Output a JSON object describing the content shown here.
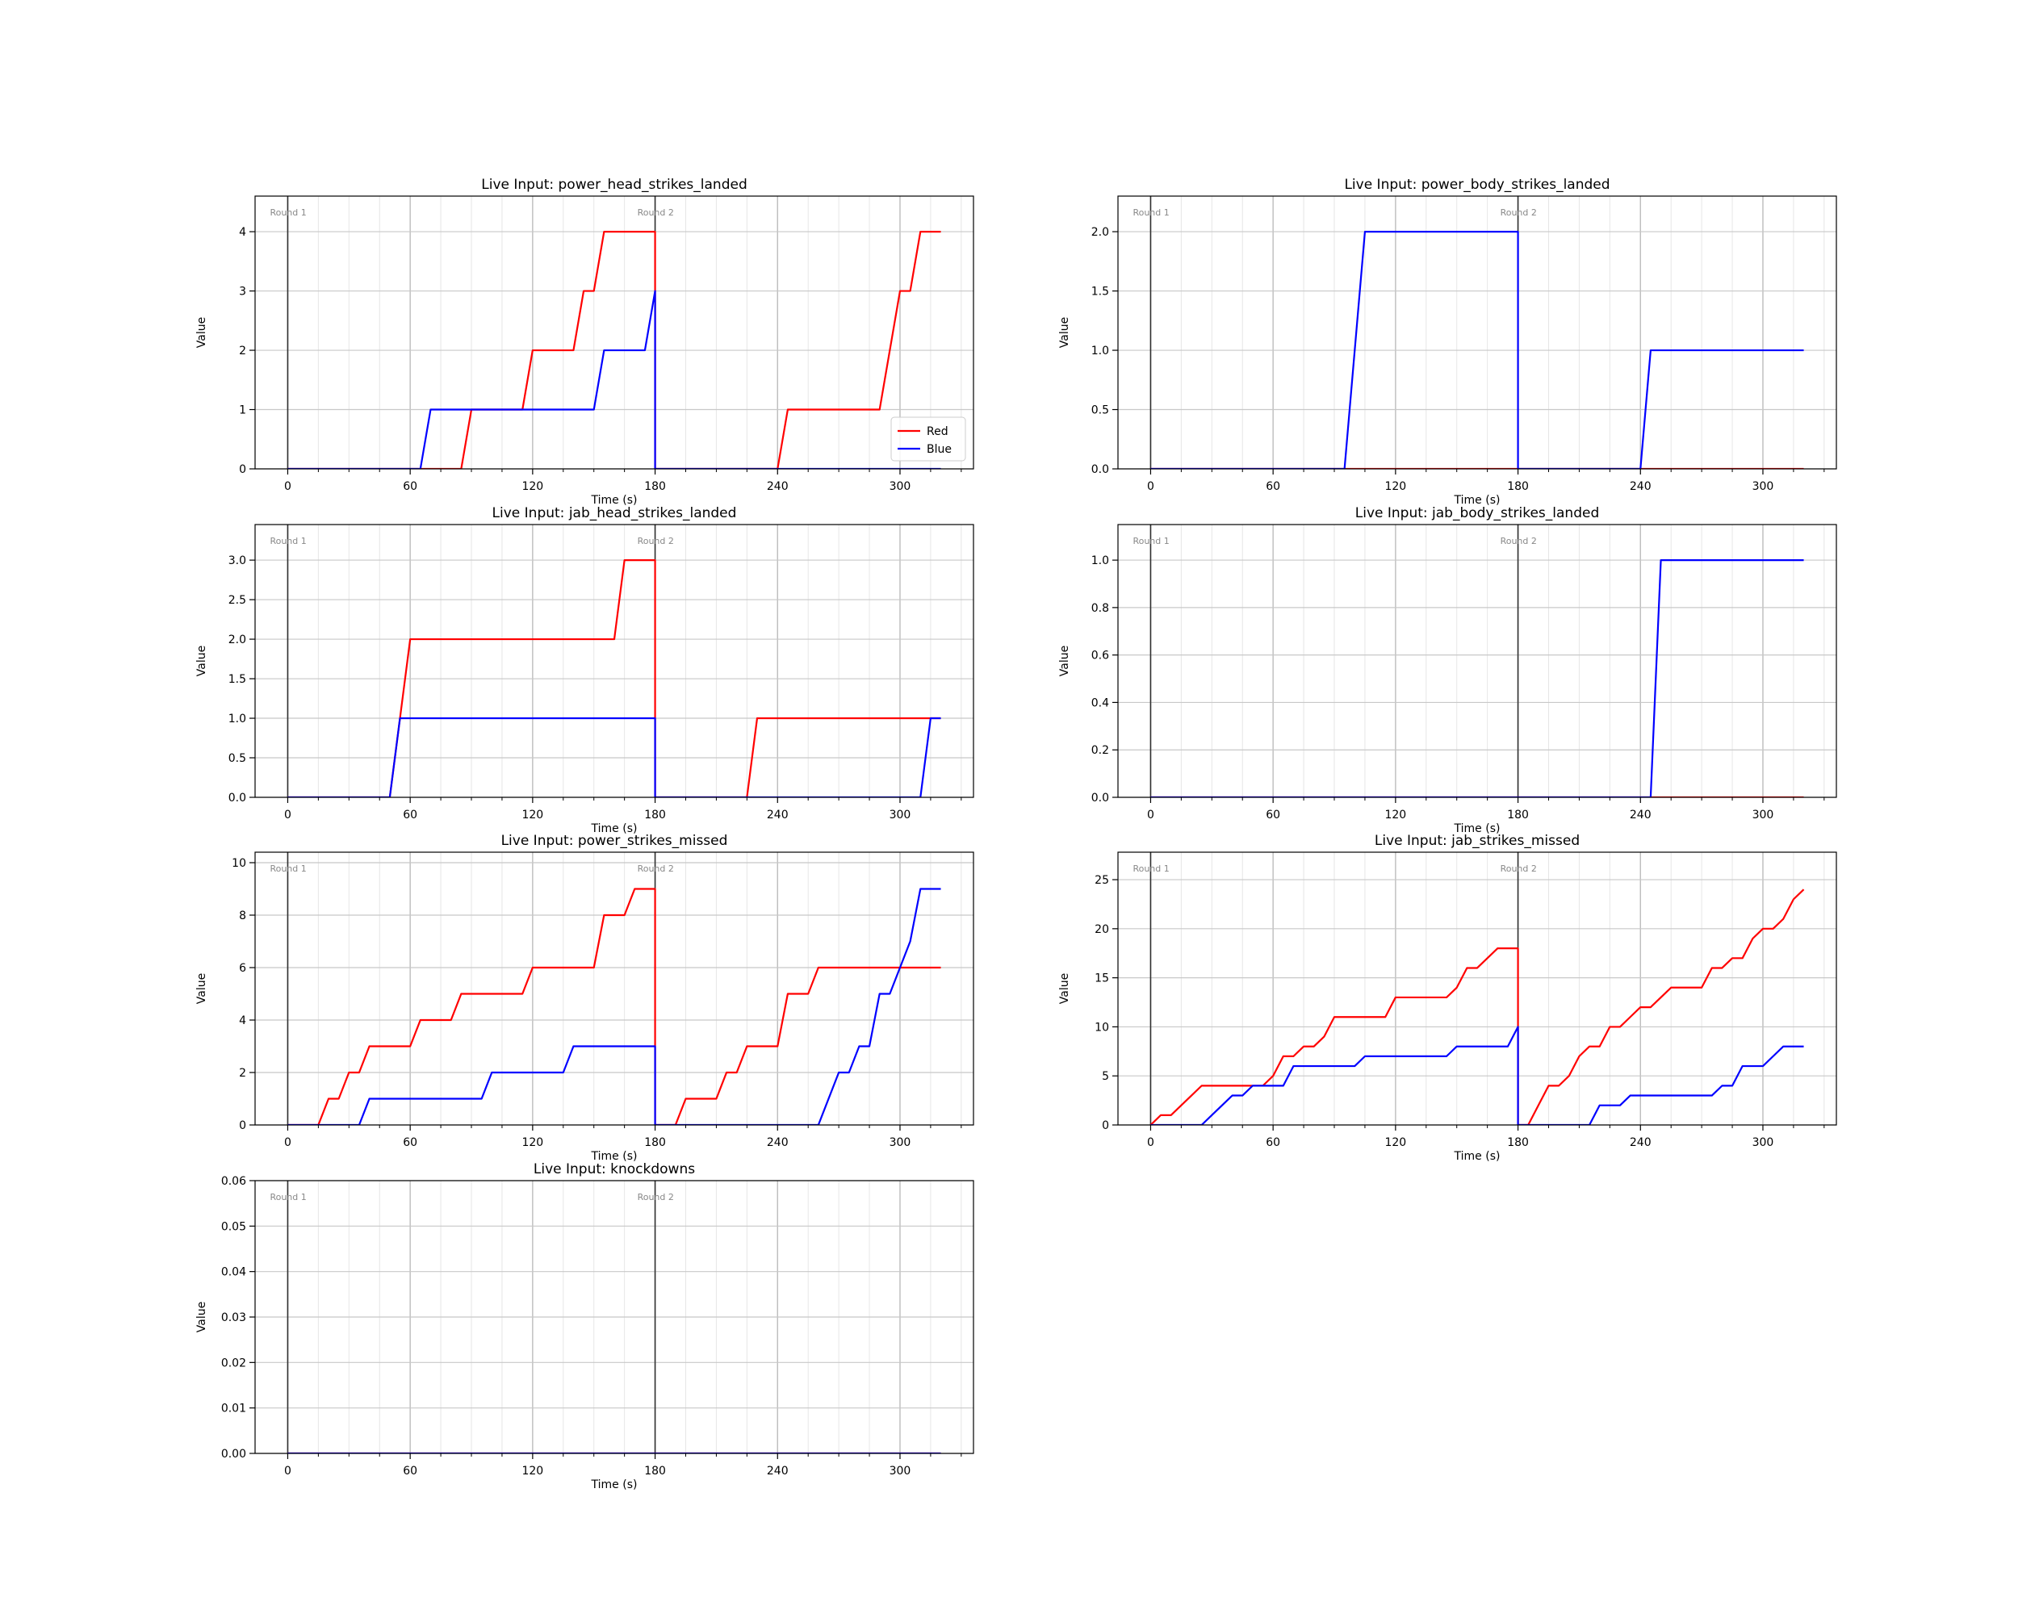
{
  "chart_data": [
    {
      "type": "line",
      "title": "Live Input: power_head_strikes_landed",
      "xlabel": "Time (s)",
      "ylabel": "Value",
      "xlim": [
        -16,
        336
      ],
      "ylim": [
        0,
        4.6
      ],
      "x_ticks": [
        0,
        60,
        120,
        180,
        240,
        300
      ],
      "y_ticks": [
        0,
        1,
        2,
        3,
        4
      ],
      "y_tick_labels": [
        "0",
        "1",
        "2",
        "3",
        "4"
      ],
      "round_markers": [
        {
          "x": 0,
          "label": "Round 1"
        },
        {
          "x": 180,
          "label": "Round 2"
        }
      ],
      "grid": true,
      "legend": {
        "show": true,
        "position": "lower-right"
      },
      "series": [
        {
          "name": "Red",
          "color": "#ff0000",
          "points": [
            [
              0,
              0
            ],
            [
              85,
              0
            ],
            [
              90,
              1
            ],
            [
              115,
              1
            ],
            [
              120,
              2
            ],
            [
              140,
              2
            ],
            [
              145,
              3
            ],
            [
              150,
              3
            ],
            [
              155,
              4
            ],
            [
              180,
              4
            ],
            [
              180,
              0
            ],
            [
              240,
              0
            ],
            [
              245,
              1
            ],
            [
              290,
              1
            ],
            [
              300,
              3
            ],
            [
              305,
              3
            ],
            [
              310,
              4
            ],
            [
              320,
              4
            ]
          ]
        },
        {
          "name": "Blue",
          "color": "#0000ff",
          "points": [
            [
              0,
              0
            ],
            [
              65,
              0
            ],
            [
              70,
              1
            ],
            [
              150,
              1
            ],
            [
              155,
              2
            ],
            [
              175,
              2
            ],
            [
              180,
              3
            ],
            [
              180,
              0
            ],
            [
              320,
              0
            ]
          ]
        }
      ]
    },
    {
      "type": "line",
      "title": "Live Input: power_body_strikes_landed",
      "xlabel": "Time (s)",
      "ylabel": "Value",
      "xlim": [
        -16,
        336
      ],
      "ylim": [
        0,
        2.3
      ],
      "x_ticks": [
        0,
        60,
        120,
        180,
        240,
        300
      ],
      "y_ticks": [
        0,
        0.5,
        1.0,
        1.5,
        2.0
      ],
      "y_tick_labels": [
        "0.0",
        "0.5",
        "1.0",
        "1.5",
        "2.0"
      ],
      "round_markers": [
        {
          "x": 0,
          "label": "Round 1"
        },
        {
          "x": 180,
          "label": "Round 2"
        }
      ],
      "grid": true,
      "legend": {
        "show": false
      },
      "series": [
        {
          "name": "Red",
          "color": "#ff0000",
          "points": [
            [
              0,
              0
            ],
            [
              320,
              0
            ]
          ]
        },
        {
          "name": "Blue",
          "color": "#0000ff",
          "points": [
            [
              0,
              0
            ],
            [
              95,
              0
            ],
            [
              105,
              2
            ],
            [
              180,
              2
            ],
            [
              180,
              0
            ],
            [
              240,
              0
            ],
            [
              245,
              1
            ],
            [
              320,
              1
            ]
          ]
        }
      ]
    },
    {
      "type": "line",
      "title": "Live Input: jab_head_strikes_landed",
      "xlabel": "Time (s)",
      "ylabel": "Value",
      "xlim": [
        -16,
        336
      ],
      "ylim": [
        0,
        3.45
      ],
      "x_ticks": [
        0,
        60,
        120,
        180,
        240,
        300
      ],
      "y_ticks": [
        0,
        0.5,
        1.0,
        1.5,
        2.0,
        2.5,
        3.0
      ],
      "y_tick_labels": [
        "0.0",
        "0.5",
        "1.0",
        "1.5",
        "2.0",
        "2.5",
        "3.0"
      ],
      "round_markers": [
        {
          "x": 0,
          "label": "Round 1"
        },
        {
          "x": 180,
          "label": "Round 2"
        }
      ],
      "grid": true,
      "legend": {
        "show": false
      },
      "series": [
        {
          "name": "Red",
          "color": "#ff0000",
          "points": [
            [
              0,
              0
            ],
            [
              50,
              0
            ],
            [
              60,
              2
            ],
            [
              160,
              2
            ],
            [
              165,
              3
            ],
            [
              180,
              3
            ],
            [
              180,
              0
            ],
            [
              225,
              0
            ],
            [
              230,
              1
            ],
            [
              320,
              1
            ]
          ]
        },
        {
          "name": "Blue",
          "color": "#0000ff",
          "points": [
            [
              0,
              0
            ],
            [
              50,
              0
            ],
            [
              55,
              1
            ],
            [
              180,
              1
            ],
            [
              180,
              0
            ],
            [
              310,
              0
            ],
            [
              315,
              1
            ],
            [
              320,
              1
            ]
          ]
        }
      ]
    },
    {
      "type": "line",
      "title": "Live Input: jab_body_strikes_landed",
      "xlabel": "Time (s)",
      "ylabel": "Value",
      "xlim": [
        -16,
        336
      ],
      "ylim": [
        0,
        1.15
      ],
      "x_ticks": [
        0,
        60,
        120,
        180,
        240,
        300
      ],
      "y_ticks": [
        0,
        0.2,
        0.4,
        0.6,
        0.8,
        1.0
      ],
      "y_tick_labels": [
        "0.0",
        "0.2",
        "0.4",
        "0.6",
        "0.8",
        "1.0"
      ],
      "round_markers": [
        {
          "x": 0,
          "label": "Round 1"
        },
        {
          "x": 180,
          "label": "Round 2"
        }
      ],
      "grid": true,
      "legend": {
        "show": false
      },
      "series": [
        {
          "name": "Red",
          "color": "#ff0000",
          "points": [
            [
              0,
              0
            ],
            [
              320,
              0
            ]
          ]
        },
        {
          "name": "Blue",
          "color": "#0000ff",
          "points": [
            [
              0,
              0
            ],
            [
              245,
              0
            ],
            [
              250,
              1
            ],
            [
              320,
              1
            ]
          ]
        }
      ]
    },
    {
      "type": "line",
      "title": "Live Input: power_strikes_missed",
      "xlabel": "Time (s)",
      "ylabel": "Value",
      "xlim": [
        -16,
        336
      ],
      "ylim": [
        0,
        10.4
      ],
      "x_ticks": [
        0,
        60,
        120,
        180,
        240,
        300
      ],
      "y_ticks": [
        0,
        2,
        4,
        6,
        8,
        10
      ],
      "y_tick_labels": [
        "0",
        "2",
        "4",
        "6",
        "8",
        "10"
      ],
      "round_markers": [
        {
          "x": 0,
          "label": "Round 1"
        },
        {
          "x": 180,
          "label": "Round 2"
        }
      ],
      "grid": true,
      "legend": {
        "show": false
      },
      "series": [
        {
          "name": "Red",
          "color": "#ff0000",
          "points": [
            [
              0,
              0
            ],
            [
              15,
              0
            ],
            [
              20,
              1
            ],
            [
              25,
              1
            ],
            [
              30,
              2
            ],
            [
              35,
              2
            ],
            [
              40,
              3
            ],
            [
              60,
              3
            ],
            [
              65,
              4
            ],
            [
              80,
              4
            ],
            [
              85,
              5
            ],
            [
              115,
              5
            ],
            [
              120,
              6
            ],
            [
              150,
              6
            ],
            [
              155,
              8
            ],
            [
              165,
              8
            ],
            [
              170,
              9
            ],
            [
              180,
              9
            ],
            [
              180,
              0
            ],
            [
              190,
              0
            ],
            [
              195,
              1
            ],
            [
              210,
              1
            ],
            [
              215,
              2
            ],
            [
              220,
              2
            ],
            [
              225,
              3
            ],
            [
              240,
              3
            ],
            [
              245,
              5
            ],
            [
              255,
              5
            ],
            [
              260,
              6
            ],
            [
              320,
              6
            ]
          ]
        },
        {
          "name": "Blue",
          "color": "#0000ff",
          "points": [
            [
              0,
              0
            ],
            [
              35,
              0
            ],
            [
              40,
              1
            ],
            [
              95,
              1
            ],
            [
              100,
              2
            ],
            [
              135,
              2
            ],
            [
              140,
              3
            ],
            [
              180,
              3
            ],
            [
              180,
              0
            ],
            [
              260,
              0
            ],
            [
              270,
              2
            ],
            [
              275,
              2
            ],
            [
              280,
              3
            ],
            [
              285,
              3
            ],
            [
              290,
              5
            ],
            [
              295,
              5
            ],
            [
              300,
              6
            ],
            [
              305,
              7
            ],
            [
              310,
              9
            ],
            [
              320,
              9
            ]
          ]
        }
      ]
    },
    {
      "type": "line",
      "title": "Live Input: jab_strikes_missed",
      "xlabel": "Time (s)",
      "ylabel": "Value",
      "xlim": [
        -16,
        336
      ],
      "ylim": [
        0,
        27.8
      ],
      "x_ticks": [
        0,
        60,
        120,
        180,
        240,
        300
      ],
      "y_ticks": [
        0,
        5,
        10,
        15,
        20,
        25
      ],
      "y_tick_labels": [
        "0",
        "5",
        "10",
        "15",
        "20",
        "25"
      ],
      "round_markers": [
        {
          "x": 0,
          "label": "Round 1"
        },
        {
          "x": 180,
          "label": "Round 2"
        }
      ],
      "grid": true,
      "legend": {
        "show": false
      },
      "series": [
        {
          "name": "Red",
          "color": "#ff0000",
          "points": [
            [
              0,
              0
            ],
            [
              5,
              1
            ],
            [
              10,
              1
            ],
            [
              15,
              2
            ],
            [
              20,
              3
            ],
            [
              25,
              4
            ],
            [
              50,
              4
            ],
            [
              55,
              4
            ],
            [
              60,
              5
            ],
            [
              65,
              7
            ],
            [
              70,
              7
            ],
            [
              75,
              8
            ],
            [
              80,
              8
            ],
            [
              85,
              9
            ],
            [
              90,
              11
            ],
            [
              115,
              11
            ],
            [
              120,
              13
            ],
            [
              145,
              13
            ],
            [
              150,
              14
            ],
            [
              155,
              16
            ],
            [
              160,
              16
            ],
            [
              165,
              17
            ],
            [
              170,
              18
            ],
            [
              180,
              18
            ],
            [
              180,
              0
            ],
            [
              185,
              0
            ],
            [
              190,
              2
            ],
            [
              195,
              4
            ],
            [
              200,
              4
            ],
            [
              205,
              5
            ],
            [
              210,
              7
            ],
            [
              215,
              8
            ],
            [
              220,
              8
            ],
            [
              225,
              10
            ],
            [
              230,
              10
            ],
            [
              235,
              11
            ],
            [
              240,
              12
            ],
            [
              245,
              12
            ],
            [
              250,
              13
            ],
            [
              255,
              14
            ],
            [
              270,
              14
            ],
            [
              275,
              16
            ],
            [
              280,
              16
            ],
            [
              285,
              17
            ],
            [
              290,
              17
            ],
            [
              295,
              19
            ],
            [
              300,
              20
            ],
            [
              305,
              20
            ],
            [
              310,
              21
            ],
            [
              315,
              23
            ],
            [
              320,
              24
            ]
          ]
        },
        {
          "name": "Blue",
          "color": "#0000ff",
          "points": [
            [
              0,
              0
            ],
            [
              25,
              0
            ],
            [
              30,
              1
            ],
            [
              40,
              3
            ],
            [
              45,
              3
            ],
            [
              50,
              4
            ],
            [
              65,
              4
            ],
            [
              70,
              6
            ],
            [
              100,
              6
            ],
            [
              105,
              7
            ],
            [
              145,
              7
            ],
            [
              150,
              8
            ],
            [
              175,
              8
            ],
            [
              180,
              10
            ],
            [
              180,
              0
            ],
            [
              215,
              0
            ],
            [
              220,
              2
            ],
            [
              230,
              2
            ],
            [
              235,
              3
            ],
            [
              275,
              3
            ],
            [
              280,
              4
            ],
            [
              285,
              4
            ],
            [
              290,
              6
            ],
            [
              300,
              6
            ],
            [
              305,
              7
            ],
            [
              310,
              8
            ],
            [
              320,
              8
            ]
          ]
        }
      ]
    },
    {
      "type": "line",
      "title": "Live Input: knockdowns",
      "xlabel": "Time (s)",
      "ylabel": "Value",
      "xlim": [
        -16,
        336
      ],
      "ylim": [
        0,
        0.06
      ],
      "x_ticks": [
        0,
        60,
        120,
        180,
        240,
        300
      ],
      "y_ticks": [
        0,
        0.01,
        0.02,
        0.03,
        0.04,
        0.05,
        0.06
      ],
      "y_tick_labels": [
        "0.00",
        "0.01",
        "0.02",
        "0.03",
        "0.04",
        "0.05",
        "0.06"
      ],
      "round_markers": [
        {
          "x": 0,
          "label": "Round 1"
        },
        {
          "x": 180,
          "label": "Round 2"
        }
      ],
      "grid": true,
      "legend": {
        "show": false
      },
      "series": [
        {
          "name": "Red",
          "color": "#ff0000",
          "points": [
            [
              0,
              0
            ],
            [
              320,
              0
            ]
          ]
        },
        {
          "name": "Blue",
          "color": "#0000ff",
          "points": [
            [
              0,
              0
            ],
            [
              320,
              0
            ]
          ]
        }
      ]
    }
  ]
}
